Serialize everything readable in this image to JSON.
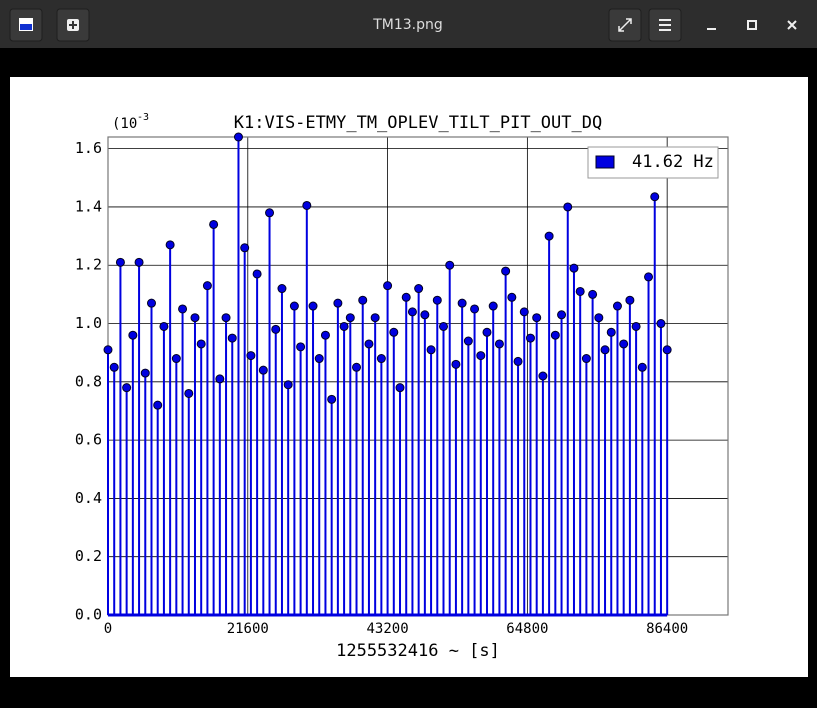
{
  "window": {
    "title": "TM13.png"
  },
  "chart_data": {
    "type": "stem",
    "title": "K1:VIS-ETMY_TM_OPLEV_TILT_PIT_OUT_DQ",
    "x_label": "1255532416 ~ [s]",
    "y_scale_base": "(10",
    "y_scale_power": "-3",
    "xlim": [
      0,
      95800
    ],
    "ylim": [
      0,
      1.64
    ],
    "xticks": [
      0,
      21600,
      43200,
      64800,
      86400
    ],
    "yticks": [
      {
        "value": 0,
        "label": "0.0"
      },
      0.2,
      0.4,
      0.6,
      0.8,
      {
        "value": 1,
        "label": "1.0"
      },
      1.2,
      1.4,
      1.6
    ],
    "grid": true,
    "legend_position": "upper right",
    "series": [
      {
        "name": "41.62 Hz",
        "color": "#0000e0",
        "x": [
          0,
          960,
          1920,
          2880,
          3840,
          4800,
          5760,
          6720,
          7680,
          8640,
          9600,
          10560,
          11520,
          12480,
          13440,
          14400,
          15360,
          16320,
          17280,
          18240,
          19200,
          20160,
          21120,
          22080,
          23040,
          24000,
          24960,
          25920,
          26880,
          27840,
          28800,
          29760,
          30720,
          31680,
          32640,
          33600,
          34560,
          35520,
          36480,
          37440,
          38400,
          39360,
          40320,
          41280,
          42240,
          43200,
          44160,
          45120,
          46080,
          47040,
          48000,
          48960,
          49920,
          50880,
          51840,
          52800,
          53760,
          54720,
          55680,
          56640,
          57600,
          58560,
          59520,
          60480,
          61440,
          62400,
          63360,
          64320,
          65280,
          66240,
          67200,
          68160,
          69120,
          70080,
          71040,
          72000,
          72960,
          73920,
          74880,
          75840,
          76800,
          77760,
          78720,
          79680,
          80640,
          81600,
          82560,
          83520,
          84480,
          85440,
          86400
        ],
        "values": [
          0.91,
          0.85,
          1.21,
          0.78,
          0.96,
          1.21,
          0.83,
          1.07,
          0.72,
          0.99,
          1.27,
          0.88,
          1.05,
          0.76,
          1.02,
          0.93,
          1.13,
          1.34,
          0.81,
          1.02,
          0.95,
          1.64,
          1.26,
          0.89,
          1.17,
          0.84,
          1.38,
          0.98,
          1.12,
          0.79,
          1.06,
          0.92,
          1.405,
          1.06,
          0.88,
          0.96,
          0.74,
          1.07,
          0.99,
          1.02,
          0.85,
          1.08,
          0.93,
          1.02,
          0.88,
          1.13,
          0.97,
          0.78,
          1.09,
          1.04,
          1.12,
          1.03,
          0.91,
          1.08,
          0.99,
          1.2,
          0.86,
          1.07,
          0.94,
          1.05,
          0.89,
          0.97,
          1.06,
          0.93,
          1.18,
          1.09,
          0.87,
          1.04,
          0.95,
          1.02,
          0.82,
          1.3,
          0.96,
          1.03,
          1.4,
          1.19,
          1.11,
          0.88,
          1.1,
          1.02,
          0.91,
          0.97,
          1.06,
          0.93,
          1.08,
          0.99,
          0.85,
          1.16,
          1.435,
          1.0,
          0.91
        ]
      }
    ]
  }
}
